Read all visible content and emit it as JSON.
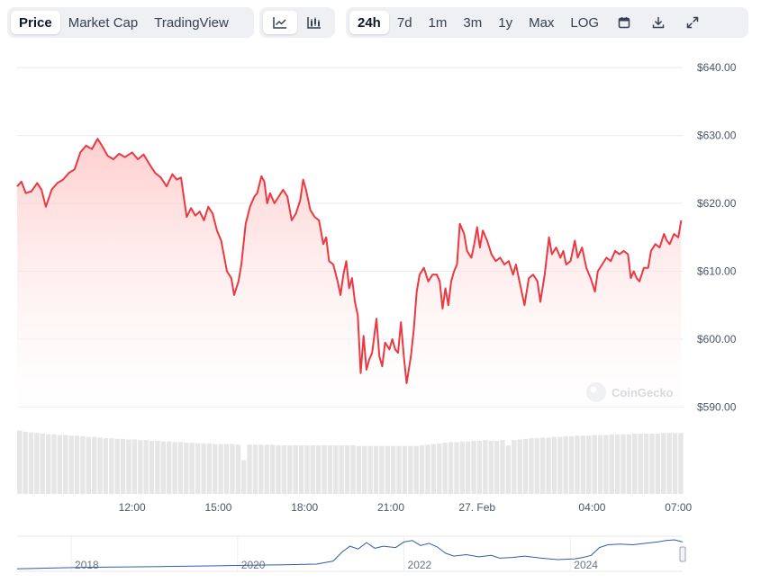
{
  "tabs": {
    "price": "Price",
    "market_cap": "Market Cap",
    "tradingview": "TradingView"
  },
  "chart_style_buttons": [
    {
      "icon": "line-chart-icon",
      "active": true
    },
    {
      "icon": "candlestick-chart-icon",
      "active": false
    }
  ],
  "ranges": [
    "24h",
    "7d",
    "1m",
    "3m",
    "1y",
    "Max",
    "LOG"
  ],
  "active_range": "24h",
  "tool_icons": [
    "calendar-icon",
    "download-icon",
    "expand-icon"
  ],
  "watermark": "CoinGecko",
  "colors": {
    "line": "#ea3943",
    "fill_top": "#ffc9c9",
    "volume": "#e6e6e6",
    "navigator": "#335cad"
  },
  "chart_data": {
    "type": "area",
    "title": "",
    "xlabel": "",
    "ylabel": "",
    "ylim": [
      589,
      642
    ],
    "y_ticks": [
      640,
      630,
      620,
      610,
      600,
      590
    ],
    "y_tick_labels": [
      "$640.00",
      "$630.00",
      "$620.00",
      "$610.00",
      "$600.00",
      "$590.00"
    ],
    "grid": true,
    "x_range_hours": [
      8.0,
      31.15
    ],
    "x_ticks": [
      {
        "h": 12,
        "label": "12:00"
      },
      {
        "h": 15,
        "label": "15:00"
      },
      {
        "h": 18,
        "label": "18:00"
      },
      {
        "h": 21,
        "label": "21:00"
      },
      {
        "h": 24,
        "label": "27. Feb"
      },
      {
        "h": 28,
        "label": "04:00"
      },
      {
        "h": 31,
        "label": "07:00"
      }
    ],
    "series": [
      {
        "points": [
          [
            8.0,
            622.5
          ],
          [
            8.15,
            623.2
          ],
          [
            8.3,
            621.5
          ],
          [
            8.5,
            621.8
          ],
          [
            8.7,
            623.0
          ],
          [
            8.85,
            622.0
          ],
          [
            9.0,
            619.5
          ],
          [
            9.2,
            622.0
          ],
          [
            9.4,
            623.0
          ],
          [
            9.6,
            623.5
          ],
          [
            9.8,
            624.5
          ],
          [
            10.0,
            625.0
          ],
          [
            10.2,
            627.5
          ],
          [
            10.4,
            628.5
          ],
          [
            10.6,
            628.0
          ],
          [
            10.8,
            629.5
          ],
          [
            10.95,
            628.5
          ],
          [
            11.15,
            627.0
          ],
          [
            11.35,
            626.5
          ],
          [
            11.55,
            627.3
          ],
          [
            11.75,
            626.8
          ],
          [
            12.0,
            627.5
          ],
          [
            12.2,
            626.5
          ],
          [
            12.4,
            627.2
          ],
          [
            12.6,
            625.8
          ],
          [
            12.8,
            624.5
          ],
          [
            13.0,
            623.8
          ],
          [
            13.2,
            622.5
          ],
          [
            13.4,
            624.3
          ],
          [
            13.55,
            623.5
          ],
          [
            13.7,
            623.8
          ],
          [
            13.9,
            618.0
          ],
          [
            14.05,
            619.3
          ],
          [
            14.2,
            618.2
          ],
          [
            14.35,
            618.8
          ],
          [
            14.5,
            617.5
          ],
          [
            14.65,
            619.5
          ],
          [
            14.8,
            618.5
          ],
          [
            14.95,
            616.0
          ],
          [
            15.1,
            614.5
          ],
          [
            15.3,
            610.0
          ],
          [
            15.45,
            609.0
          ],
          [
            15.55,
            606.5
          ],
          [
            15.7,
            608.5
          ],
          [
            15.8,
            611.0
          ],
          [
            15.95,
            617.0
          ],
          [
            16.1,
            619.5
          ],
          [
            16.25,
            621.0
          ],
          [
            16.35,
            621.5
          ],
          [
            16.5,
            624.0
          ],
          [
            16.6,
            623.2
          ],
          [
            16.7,
            620.0
          ],
          [
            16.8,
            621.5
          ],
          [
            16.95,
            620.0
          ],
          [
            17.1,
            621.0
          ],
          [
            17.25,
            622.0
          ],
          [
            17.4,
            621.0
          ],
          [
            17.55,
            617.5
          ],
          [
            17.7,
            618.5
          ],
          [
            17.85,
            620.5
          ],
          [
            17.95,
            623.5
          ],
          [
            18.05,
            622.0
          ],
          [
            18.2,
            619.0
          ],
          [
            18.35,
            618.0
          ],
          [
            18.5,
            617.5
          ],
          [
            18.65,
            614.0
          ],
          [
            18.75,
            615.0
          ],
          [
            18.85,
            611.5
          ],
          [
            19.0,
            611.0
          ],
          [
            19.15,
            608.5
          ],
          [
            19.25,
            606.5
          ],
          [
            19.35,
            609.5
          ],
          [
            19.45,
            611.5
          ],
          [
            19.55,
            607.5
          ],
          [
            19.65,
            609.0
          ],
          [
            19.75,
            605.5
          ],
          [
            19.85,
            603.5
          ],
          [
            19.95,
            595.0
          ],
          [
            20.05,
            600.5
          ],
          [
            20.15,
            595.5
          ],
          [
            20.25,
            597.0
          ],
          [
            20.35,
            598.0
          ],
          [
            20.5,
            603.0
          ],
          [
            20.6,
            597.5
          ],
          [
            20.7,
            596.0
          ],
          [
            20.8,
            599.5
          ],
          [
            20.95,
            598.5
          ],
          [
            21.05,
            600.0
          ],
          [
            21.15,
            598.5
          ],
          [
            21.25,
            598.0
          ],
          [
            21.35,
            602.5
          ],
          [
            21.45,
            597.5
          ],
          [
            21.55,
            593.5
          ],
          [
            21.7,
            597.5
          ],
          [
            21.8,
            601.5
          ],
          [
            21.9,
            607.0
          ],
          [
            22.0,
            609.5
          ],
          [
            22.15,
            610.5
          ],
          [
            22.3,
            608.5
          ],
          [
            22.45,
            609.5
          ],
          [
            22.6,
            609.5
          ],
          [
            22.7,
            608.5
          ],
          [
            22.8,
            604.5
          ],
          [
            22.9,
            607.5
          ],
          [
            23.0,
            605.0
          ],
          [
            23.1,
            608.5
          ],
          [
            23.2,
            610.0
          ],
          [
            23.3,
            611.0
          ],
          [
            23.4,
            617.0
          ],
          [
            23.55,
            615.5
          ],
          [
            23.65,
            613.0
          ],
          [
            23.8,
            612.0
          ],
          [
            23.9,
            614.0
          ],
          [
            24.0,
            616.5
          ],
          [
            24.1,
            613.5
          ],
          [
            24.2,
            616.0
          ],
          [
            24.35,
            614.5
          ],
          [
            24.5,
            612.5
          ],
          [
            24.65,
            611.5
          ],
          [
            24.8,
            612.0
          ],
          [
            24.95,
            611.0
          ],
          [
            25.1,
            611.5
          ],
          [
            25.25,
            609.5
          ],
          [
            25.35,
            611.0
          ],
          [
            25.5,
            608.0
          ],
          [
            25.65,
            605.0
          ],
          [
            25.8,
            609.0
          ],
          [
            25.95,
            609.5
          ],
          [
            26.1,
            608.5
          ],
          [
            26.2,
            605.5
          ],
          [
            26.35,
            609.5
          ],
          [
            26.5,
            615.0
          ],
          [
            26.6,
            612.5
          ],
          [
            26.75,
            613.5
          ],
          [
            26.9,
            612.0
          ],
          [
            27.0,
            613.0
          ],
          [
            27.1,
            611.0
          ],
          [
            27.25,
            611.5
          ],
          [
            27.4,
            614.5
          ],
          [
            27.5,
            612.0
          ],
          [
            27.65,
            613.5
          ],
          [
            27.8,
            610.5
          ],
          [
            27.95,
            609.0
          ],
          [
            28.1,
            607.0
          ],
          [
            28.2,
            610.0
          ],
          [
            28.35,
            611.0
          ],
          [
            28.5,
            612.0
          ],
          [
            28.65,
            611.5
          ],
          [
            28.8,
            613.0
          ],
          [
            28.95,
            612.5
          ],
          [
            29.1,
            613.0
          ],
          [
            29.25,
            612.5
          ],
          [
            29.35,
            609.0
          ],
          [
            29.45,
            610.0
          ],
          [
            29.55,
            609.0
          ],
          [
            29.65,
            608.5
          ],
          [
            29.8,
            610.5
          ],
          [
            29.95,
            610.5
          ],
          [
            30.05,
            613.0
          ],
          [
            30.2,
            614.0
          ],
          [
            30.35,
            613.5
          ],
          [
            30.5,
            615.5
          ],
          [
            30.6,
            614.5
          ],
          [
            30.7,
            614.0
          ],
          [
            30.85,
            615.5
          ],
          [
            31.0,
            615.0
          ],
          [
            31.1,
            617.5
          ],
          [
            31.2,
            616.5
          ],
          [
            31.35,
            617.0
          ],
          [
            31.5,
            616.0
          ],
          [
            31.65,
            616.8
          ],
          [
            31.8,
            615.5
          ],
          [
            31.95,
            615.0
          ],
          [
            32.05,
            616.0
          ],
          [
            32.1,
            616.3
          ]
        ]
      }
    ],
    "volume_series": {
      "x_step_hours": 0.2,
      "relative_levels": [
        0.98,
        0.96,
        0.95,
        0.94,
        0.93,
        0.92,
        0.92,
        0.91,
        0.91,
        0.9,
        0.9,
        0.89,
        0.88,
        0.88,
        0.87,
        0.86,
        0.86,
        0.85,
        0.85,
        0.84,
        0.84,
        0.83,
        0.83,
        0.82,
        0.82,
        0.81,
        0.81,
        0.8,
        0.8,
        0.79,
        0.79,
        0.78,
        0.78,
        0.78,
        0.77,
        0.77,
        0.77,
        0.77,
        0.76,
        0.52,
        0.76,
        0.76,
        0.76,
        0.76,
        0.76,
        0.75,
        0.75,
        0.75,
        0.75,
        0.75,
        0.75,
        0.75,
        0.75,
        0.75,
        0.75,
        0.75,
        0.75,
        0.75,
        0.75,
        0.74,
        0.74,
        0.74,
        0.74,
        0.74,
        0.74,
        0.74,
        0.74,
        0.74,
        0.74,
        0.74,
        0.75,
        0.76,
        0.77,
        0.78,
        0.79,
        0.8,
        0.8,
        0.81,
        0.81,
        0.82,
        0.82,
        0.83,
        0.82,
        0.82,
        0.83,
        0.75,
        0.83,
        0.84,
        0.85,
        0.86,
        0.86,
        0.87,
        0.87,
        0.88,
        0.88,
        0.89,
        0.89,
        0.9,
        0.9,
        0.9,
        0.91,
        0.91,
        0.91,
        0.92,
        0.92,
        0.92,
        0.92,
        0.93,
        0.93,
        0.93,
        0.93,
        0.93,
        0.94,
        0.94,
        0.94,
        0.94,
        0.94,
        0.94,
        0.94,
        0.95,
        0.95,
        0.95,
        0.95,
        0.95,
        0.95,
        0.95,
        0.95,
        0.96,
        0.96,
        0.96,
        0.96,
        0.96,
        0.96,
        0.96,
        0.97,
        0.97,
        0.97,
        0.97,
        0.97,
        0.97,
        0.97,
        0.97,
        0.98,
        0.98,
        0.98,
        0.98,
        0.98,
        0.98,
        0.98,
        0.98,
        0.98,
        0.98,
        0.98,
        0.98
      ]
    },
    "navigator": {
      "year_labels": [
        "2018",
        "2020",
        "2022",
        "2024"
      ],
      "year_range": [
        2017.2,
        2025.2
      ],
      "points": [
        [
          2017.2,
          0.5
        ],
        [
          2017.6,
          1.0
        ],
        [
          2018.0,
          1.5
        ],
        [
          2018.4,
          1.8
        ],
        [
          2018.8,
          2.0
        ],
        [
          2019.2,
          2.3
        ],
        [
          2019.6,
          2.6
        ],
        [
          2020.0,
          3.0
        ],
        [
          2020.4,
          3.3
        ],
        [
          2020.8,
          3.8
        ],
        [
          2021.0,
          6.0
        ],
        [
          2021.1,
          12.0
        ],
        [
          2021.2,
          16.5
        ],
        [
          2021.3,
          14.5
        ],
        [
          2021.4,
          19.0
        ],
        [
          2021.5,
          15.0
        ],
        [
          2021.6,
          16.5
        ],
        [
          2021.75,
          15.5
        ],
        [
          2021.85,
          19.5
        ],
        [
          2021.95,
          20.5
        ],
        [
          2022.05,
          17.0
        ],
        [
          2022.15,
          18.5
        ],
        [
          2022.25,
          16.0
        ],
        [
          2022.35,
          11.5
        ],
        [
          2022.45,
          9.5
        ],
        [
          2022.6,
          10.5
        ],
        [
          2022.75,
          9.0
        ],
        [
          2022.9,
          10.0
        ],
        [
          2023.0,
          8.0
        ],
        [
          2023.15,
          8.5
        ],
        [
          2023.3,
          9.5
        ],
        [
          2023.5,
          8.0
        ],
        [
          2023.7,
          7.0
        ],
        [
          2023.9,
          7.5
        ],
        [
          2024.0,
          8.5
        ],
        [
          2024.1,
          10.0
        ],
        [
          2024.2,
          15.5
        ],
        [
          2024.3,
          17.5
        ],
        [
          2024.45,
          18.0
        ],
        [
          2024.6,
          17.5
        ],
        [
          2024.75,
          18.5
        ],
        [
          2024.9,
          19.5
        ],
        [
          2025.0,
          20.5
        ],
        [
          2025.1,
          21.0
        ],
        [
          2025.2,
          19.5
        ]
      ]
    }
  }
}
